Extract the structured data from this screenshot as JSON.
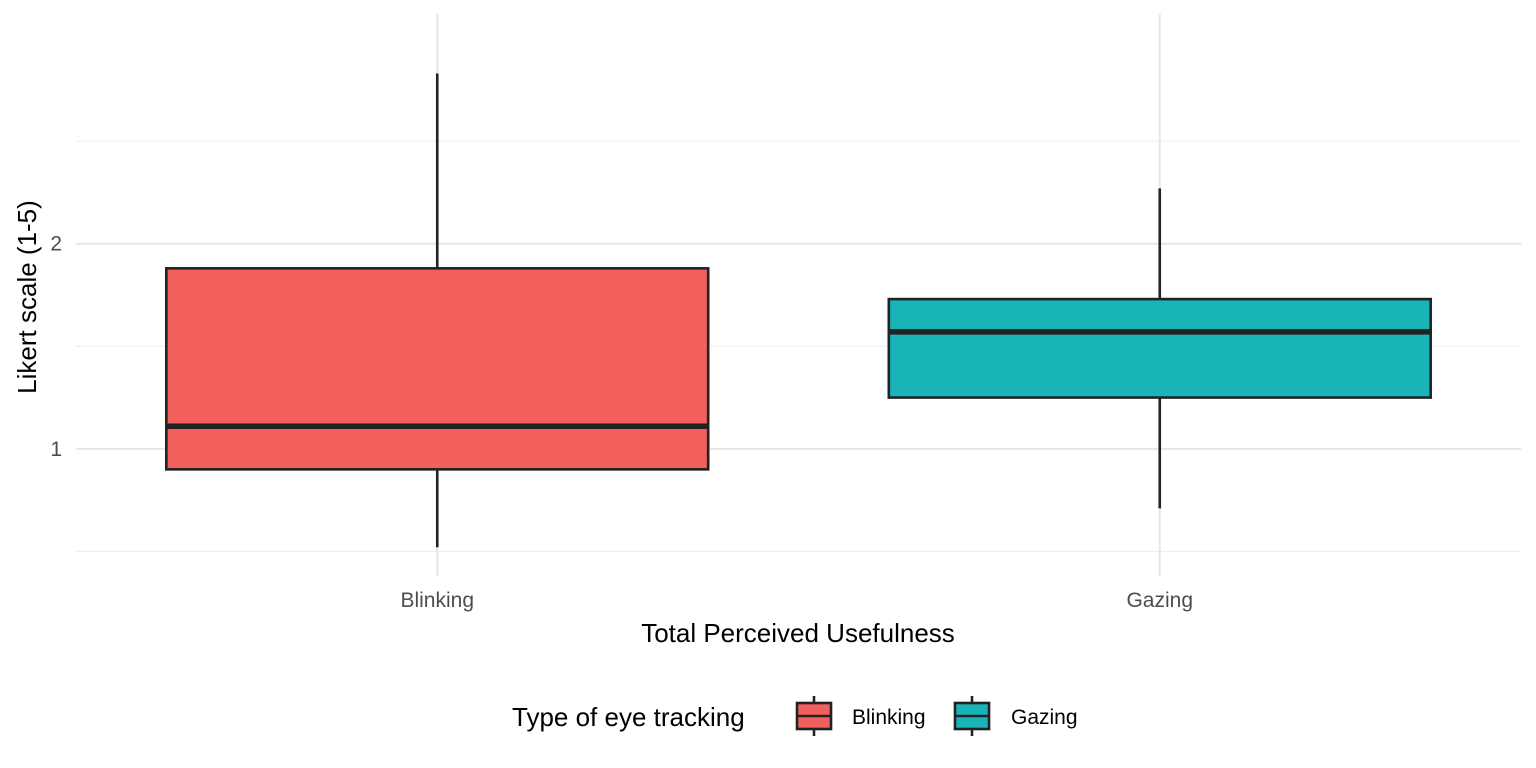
{
  "chart_data": {
    "type": "box",
    "title": "",
    "xlabel": "Total Perceived Usefulness",
    "ylabel": "Likert scale (1-5)",
    "categories": [
      "Blinking",
      "Gazing"
    ],
    "ylim": [
      0.38,
      3.12
    ],
    "y_major_ticks": [
      1,
      2
    ],
    "y_minor_ticks": [
      0.5,
      1.5,
      2.5
    ],
    "grid": true,
    "legend": {
      "title": "Type of eye tracking",
      "position": "bottom",
      "entries": [
        "Blinking",
        "Gazing"
      ]
    },
    "series": [
      {
        "name": "Blinking",
        "color": "#F25F5C",
        "min": 0.52,
        "q1": 0.9,
        "median": 1.11,
        "q3": 1.88,
        "max": 2.83
      },
      {
        "name": "Gazing",
        "color": "#19B4B8",
        "min": 0.71,
        "q1": 1.25,
        "median": 1.57,
        "q3": 1.73,
        "max": 2.27
      }
    ]
  }
}
